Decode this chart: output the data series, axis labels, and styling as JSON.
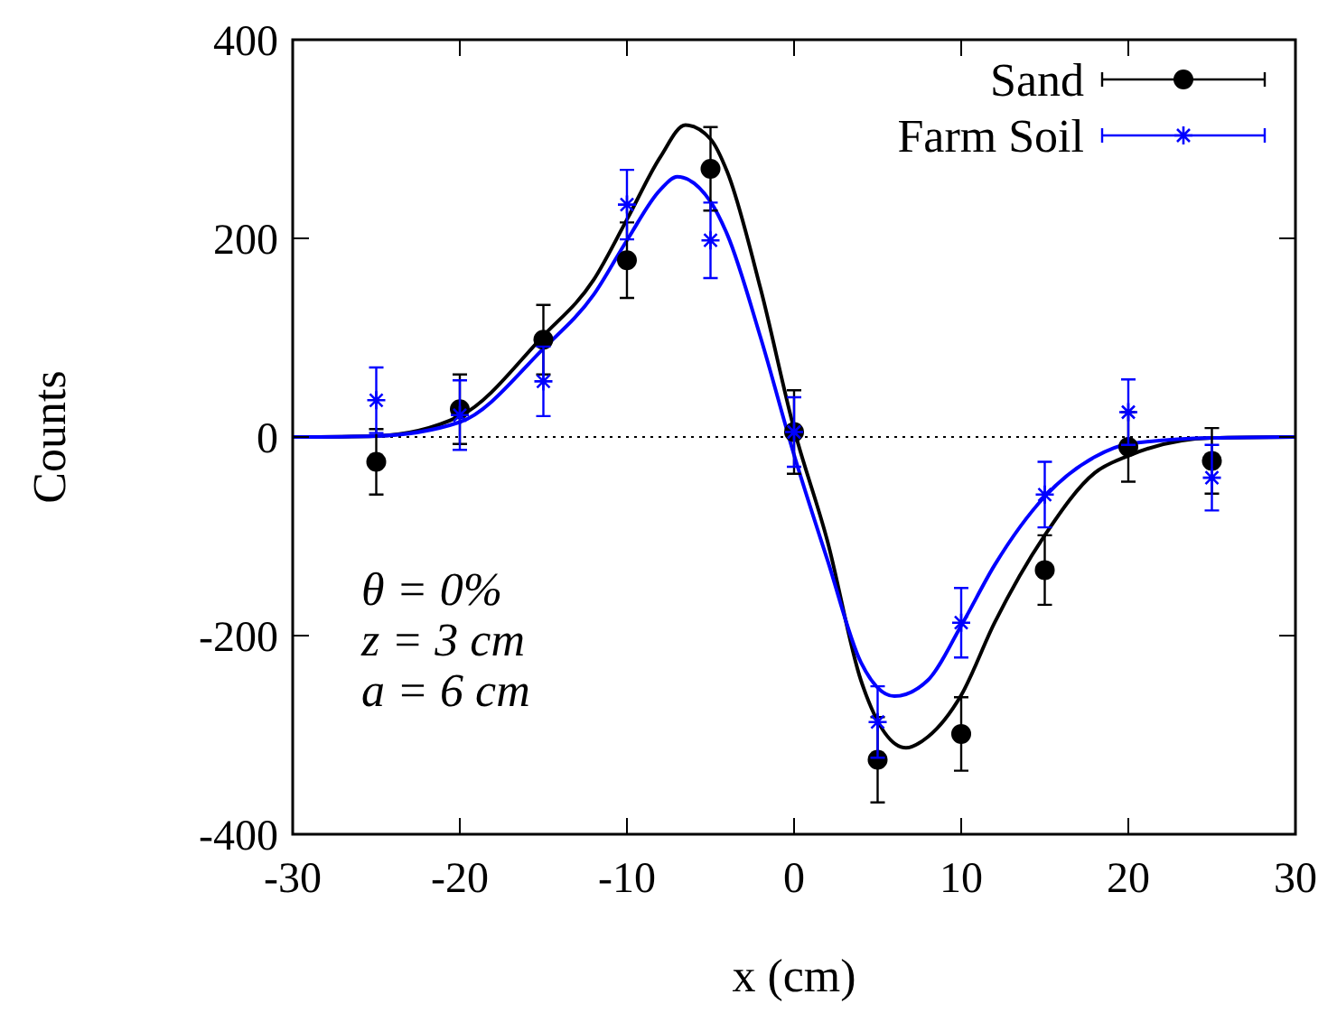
{
  "chart_data": {
    "type": "scatter",
    "xlabel": "x (cm)",
    "ylabel": "Counts",
    "xlim": [
      -30,
      30
    ],
    "ylim": [
      -400,
      400
    ],
    "xticks": [
      -30,
      -20,
      -10,
      0,
      10,
      20,
      30
    ],
    "yticks": [
      -400,
      -200,
      0,
      200,
      400
    ],
    "grid": false,
    "legend": "top right",
    "ref_lines": [
      {
        "axis": "y",
        "value": 0,
        "color": "#000000",
        "line_style": "dotted"
      }
    ],
    "annotations": [
      "θ = 0%",
      "z = 3 cm",
      "a = 6 cm"
    ],
    "series": [
      {
        "name": "Sand",
        "marker": "circle",
        "color": "#000000",
        "x": [
          -25,
          -20,
          -15,
          -10,
          -5,
          0,
          5,
          10,
          15,
          20,
          25
        ],
        "values": [
          -25,
          28,
          98,
          178,
          270,
          5,
          -325,
          -299,
          -134,
          -10,
          -24
        ],
        "errors": [
          33,
          35,
          35,
          38,
          42,
          42,
          43,
          37,
          35,
          35,
          33
        ]
      },
      {
        "name": "Farm Soil",
        "marker": "cross",
        "color": "#0000ff",
        "x": [
          -25,
          -20,
          -15,
          -10,
          -5,
          0,
          5,
          10,
          15,
          20,
          25
        ],
        "values": [
          37,
          22,
          56,
          234,
          198,
          5,
          -287,
          -187,
          -58,
          25,
          -41
        ],
        "errors": [
          33,
          35,
          35,
          35,
          38,
          35,
          36,
          35,
          33,
          33,
          33
        ]
      },
      {
        "type": "line",
        "color": "#000000",
        "x": [
          -30,
          -25,
          -20,
          -15,
          -12,
          -10,
          -8,
          -6.5,
          -5,
          -4,
          -2,
          0,
          2,
          4,
          6.7,
          8,
          10,
          12,
          15,
          18,
          20,
          25,
          30
        ],
        "values": [
          0,
          1,
          21,
          102,
          158,
          219,
          282,
          314,
          300,
          267,
          149,
          8,
          -105,
          -245,
          -313,
          -302,
          -260,
          -187,
          -99,
          -36,
          -19,
          -1,
          0
        ]
      },
      {
        "type": "line",
        "color": "#0000ff",
        "x": [
          -30,
          -25,
          -20,
          -15,
          -12,
          -10,
          -8,
          -7,
          -5,
          -4,
          -2,
          0,
          2,
          4,
          6,
          8,
          10,
          12,
          15,
          18,
          20,
          25,
          30
        ],
        "values": [
          0,
          1,
          15,
          89,
          143,
          198,
          249,
          262,
          237,
          204,
          100,
          -18,
          -124,
          -227,
          -261,
          -245,
          -190,
          -129,
          -60,
          -20,
          -7,
          -1,
          0
        ]
      }
    ]
  }
}
